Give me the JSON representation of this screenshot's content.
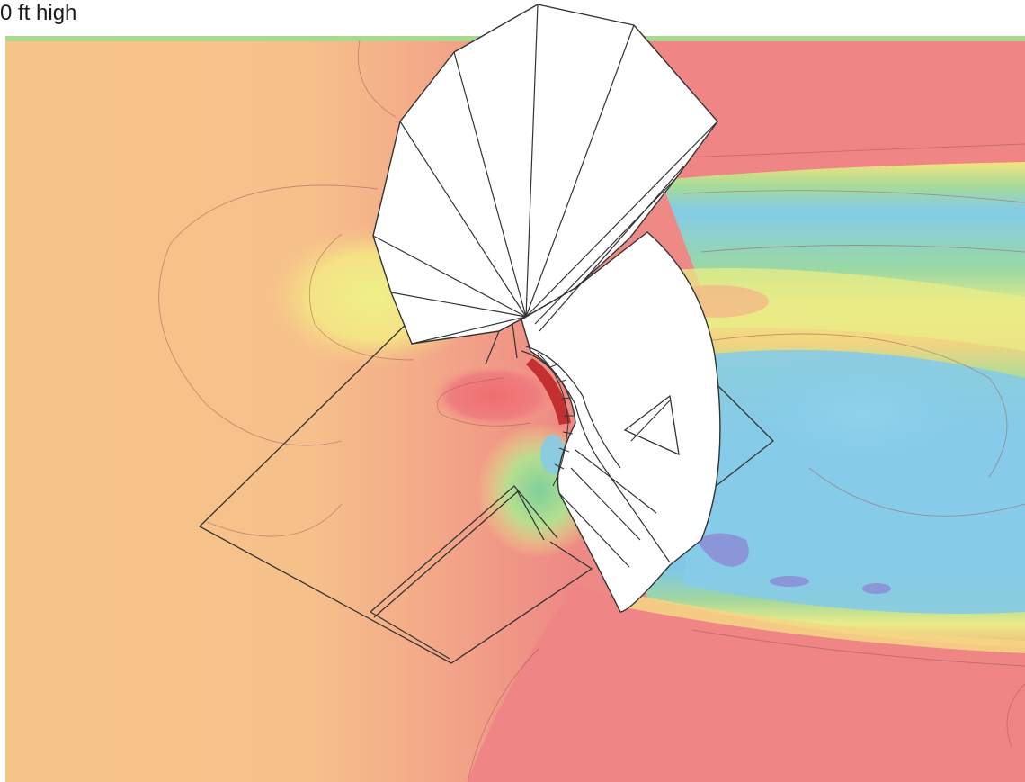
{
  "caption": {
    "text": "0 ft high"
  },
  "colors": {
    "high_velocity": "#ef8585",
    "upwind_moderate": "#f6c48a",
    "mid": "#f4ec86",
    "low": "#9ad79a",
    "lowest": "#86cbe8",
    "recirculation_core": "#8a96d8",
    "peak": "#c33030",
    "building_fill": "#ffffff",
    "outline": "#333333"
  }
}
